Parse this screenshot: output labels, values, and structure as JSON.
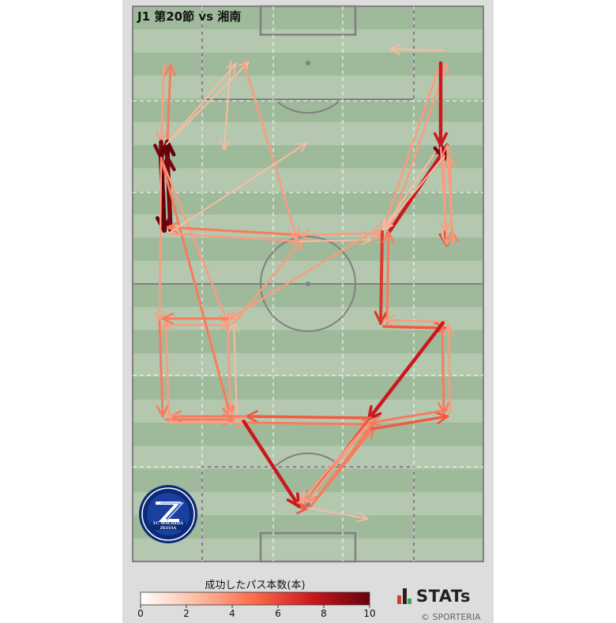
{
  "header": {
    "title": "J1 第20節 vs 湘南"
  },
  "legend": {
    "title": "成功したパス本数(本)",
    "ticks": [
      "0",
      "2",
      "4",
      "6",
      "8",
      "10"
    ],
    "min": 0,
    "max": 10,
    "color_low": "#ffffff",
    "color_mid": "#f65a3c",
    "color_high": "#67000d"
  },
  "branding": {
    "stats_label": "STATs",
    "credit": "© SPORTERIA"
  },
  "team_logo": {
    "text": "FC MACHIDA ZELVIA"
  },
  "colors": {
    "pitch_light": "#b3c8ae",
    "pitch_dark": "#9fba9b",
    "line": "#808080"
  },
  "passes": [
    {
      "from": "LW",
      "to": "LWi",
      "count": 2
    },
    {
      "from": "LWi",
      "to": "LW",
      "count": 3
    },
    {
      "from": "LWi",
      "to": "LM1",
      "count": 8
    },
    {
      "from": "LM1",
      "to": "LWi",
      "count": 9
    },
    {
      "from": "LWi",
      "to": "LCF",
      "count": 1
    },
    {
      "from": "LWi",
      "to": "CFL",
      "count": 1
    },
    {
      "from": "LM1",
      "to": "LMC",
      "count": 9
    },
    {
      "from": "LMC",
      "to": "LM1",
      "count": 8
    },
    {
      "from": "LM1",
      "to": "LB",
      "count": 2
    },
    {
      "from": "LM1",
      "to": "LCM",
      "count": 2
    },
    {
      "from": "LB",
      "to": "LB2",
      "count": 3
    },
    {
      "from": "LB2",
      "to": "LB",
      "count": 2
    },
    {
      "from": "LB",
      "to": "LCM",
      "count": 2
    },
    {
      "from": "LCM",
      "to": "LB",
      "count": 3
    },
    {
      "from": "LM1",
      "to": "LCM2",
      "count": 3
    },
    {
      "from": "LCM",
      "to": "LCM2",
      "count": 2
    },
    {
      "from": "LCM2",
      "to": "LCM",
      "count": 1
    },
    {
      "from": "LB2",
      "to": "LCM2",
      "count": 3
    },
    {
      "from": "LCM",
      "to": "CM",
      "count": 2
    },
    {
      "from": "CM",
      "to": "LMC",
      "count": 3
    },
    {
      "from": "LMC",
      "to": "CM",
      "count": 2
    },
    {
      "from": "CM",
      "to": "CR",
      "count": 1
    },
    {
      "from": "CR",
      "to": "CM",
      "count": 2
    },
    {
      "from": "CR",
      "to": "RCM",
      "count": 2
    },
    {
      "from": "RCM",
      "to": "CR",
      "count": 2
    },
    {
      "from": "RCM",
      "to": "RW",
      "count": 2
    },
    {
      "from": "RW",
      "to": "RCM",
      "count": 2
    },
    {
      "from": "RCM",
      "to": "RM1",
      "count": 6
    },
    {
      "from": "RM1",
      "to": "RCM",
      "count": 1
    },
    {
      "from": "RM1",
      "to": "RC",
      "count": 8
    },
    {
      "from": "RC",
      "to": "RC2",
      "count": 2
    },
    {
      "from": "RC2",
      "to": "RC",
      "count": 2
    },
    {
      "from": "RC2",
      "to": "RM2",
      "count": 5
    },
    {
      "from": "RM2",
      "to": "RC2",
      "count": 3
    },
    {
      "from": "RM2",
      "to": "RM1",
      "count": 2
    },
    {
      "from": "RM1",
      "to": "RM2",
      "count": 2
    },
    {
      "from": "RC",
      "to": "RCM",
      "count": 1
    },
    {
      "from": "RCM",
      "to": "RM3",
      "count": 5
    },
    {
      "from": "RM3",
      "to": "RCM",
      "count": 3
    },
    {
      "from": "RM3",
      "to": "RB",
      "count": 4
    },
    {
      "from": "RB",
      "to": "RM3",
      "count": 2
    },
    {
      "from": "RB",
      "to": "RC3",
      "count": 3
    },
    {
      "from": "RC3",
      "to": "RB",
      "count": 2
    },
    {
      "from": "RB",
      "to": "CB",
      "count": 6
    },
    {
      "from": "CB",
      "to": "LM2",
      "count": 4
    },
    {
      "from": "LM2",
      "to": "CB",
      "count": 3
    },
    {
      "from": "CB",
      "to": "GK",
      "count": 4
    },
    {
      "from": "GK",
      "to": "CB",
      "count": 3
    },
    {
      "from": "LM2",
      "to": "LB3",
      "count": 3
    },
    {
      "from": "LB3",
      "to": "LM2",
      "count": 2
    },
    {
      "from": "LB3",
      "to": "LB2",
      "count": 2
    },
    {
      "from": "LM2",
      "to": "LD",
      "count": 6
    },
    {
      "from": "LD",
      "to": "GK",
      "count": 4
    },
    {
      "from": "GK",
      "to": "RD",
      "count": 3
    },
    {
      "from": "RD",
      "to": "GK",
      "count": 2
    },
    {
      "from": "RD",
      "to": "LD",
      "count": 2
    },
    {
      "from": "GK",
      "to": "RD2",
      "count": 1
    },
    {
      "from": "RD",
      "to": "RC3",
      "count": 4
    },
    {
      "from": "RC3",
      "to": "RD",
      "count": 3
    },
    {
      "from": "RW2",
      "to": "RWt",
      "count": 1
    },
    {
      "from": "RW",
      "to": "RM1",
      "count": 6
    },
    {
      "from": "RW",
      "to": "RCF",
      "count": 2
    },
    {
      "from": "LCF",
      "to": "LCMF",
      "count": 1
    },
    {
      "from": "CFL",
      "to": "CM",
      "count": 2
    },
    {
      "from": "LMC",
      "to": "LCF2",
      "count": 1
    },
    {
      "from": "CR",
      "to": "LCM",
      "count": 2
    }
  ]
}
